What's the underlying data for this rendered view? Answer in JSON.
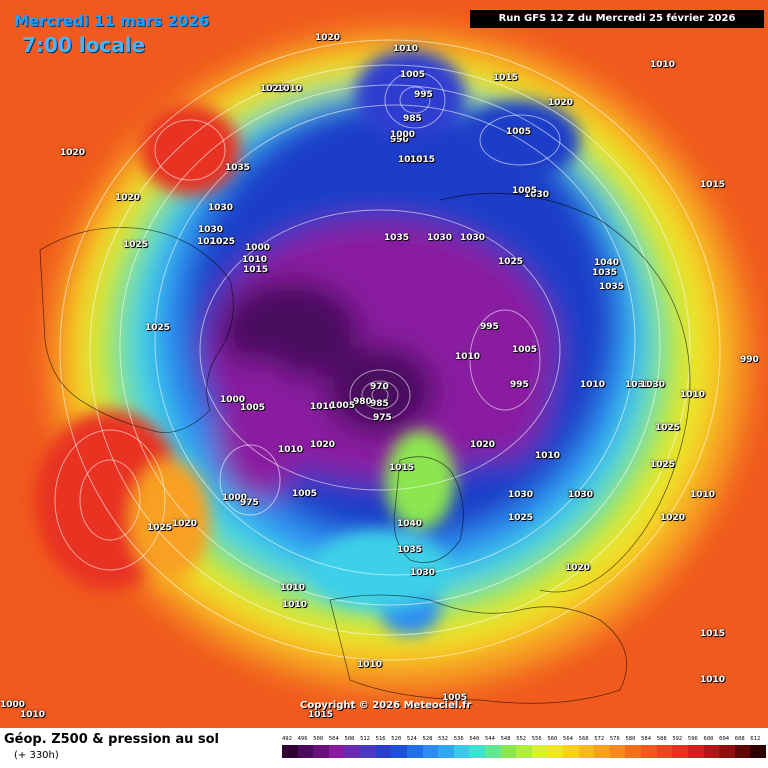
{
  "header": {
    "date": "Mercredi 11 mars 2026",
    "time": "7:00 locale",
    "run": "Run GFS 12 Z du Mercredi 25 février 2026"
  },
  "map": {
    "copyright": "Copyright © 2026 Meteociel.fr",
    "pressure_labels": [
      "1020",
      "1010",
      "1005",
      "995",
      "985",
      "990",
      "1000",
      "1015",
      "1015",
      "1025",
      "1010",
      "1015",
      "1010",
      "1020",
      "1035",
      "1020",
      "1030",
      "1030",
      "1025",
      "1020",
      "1025",
      "1000",
      "1010",
      "1015",
      "1035",
      "1030",
      "1030",
      "1025",
      "1030",
      "1035",
      "1040",
      "1035",
      "1020",
      "1015",
      "1005",
      "1005",
      "1025",
      "1000",
      "1005",
      "970",
      "975",
      "980",
      "985",
      "1010",
      "1005",
      "1010",
      "1020",
      "1015",
      "1005",
      "1020",
      "1030",
      "1025",
      "1020",
      "1000",
      "975",
      "1010",
      "1040",
      "1035",
      "1030",
      "1020",
      "1025",
      "1010",
      "1010",
      "1010",
      "1005",
      "1015",
      "1015",
      "1010",
      "1030",
      "1030",
      "1025",
      "1010",
      "1010",
      "1010",
      "995",
      "1005",
      "995",
      "1010",
      "1020",
      "1010",
      "1030",
      "1030",
      "1025",
      "1020",
      "1015",
      "990",
      "1010",
      "1000"
    ],
    "colors": {
      "deep_purple": "#4a0a5e",
      "purple": "#8a1aa0",
      "blue": "#1e3cc8",
      "light_blue": "#2e8cf0",
      "cyan": "#3cd0e8",
      "green": "#8ce650",
      "yellow": "#f0e628",
      "orange": "#f8a020",
      "red_orange": "#f05a1e",
      "red": "#e83222"
    }
  },
  "legend": {
    "title": "Géop. Z500 & pression au sol",
    "subtitle": "(+ 330h)",
    "ticks": [
      "492",
      "496",
      "500",
      "504",
      "508",
      "512",
      "516",
      "520",
      "524",
      "528",
      "532",
      "536",
      "540",
      "544",
      "548",
      "552",
      "556",
      "560",
      "564",
      "568",
      "572",
      "576",
      "580",
      "584",
      "588",
      "592",
      "596",
      "600",
      "604",
      "608",
      "612"
    ],
    "scale_colors": [
      "#300030",
      "#4a0a5e",
      "#6a107a",
      "#8a1aa0",
      "#6a2ab0",
      "#4a3ac0",
      "#2a40c8",
      "#1e50d8",
      "#1e70e8",
      "#2e8cf0",
      "#30a8f0",
      "#3cc8e8",
      "#40e0d0",
      "#60e890",
      "#8ce650",
      "#b0ec40",
      "#d8f030",
      "#f0e628",
      "#f8d020",
      "#f8b820",
      "#f8a020",
      "#f88a20",
      "#f07020",
      "#f05a1e",
      "#e84820",
      "#e83222",
      "#d02020",
      "#b01818",
      "#901010",
      "#600808",
      "#300000"
    ]
  }
}
